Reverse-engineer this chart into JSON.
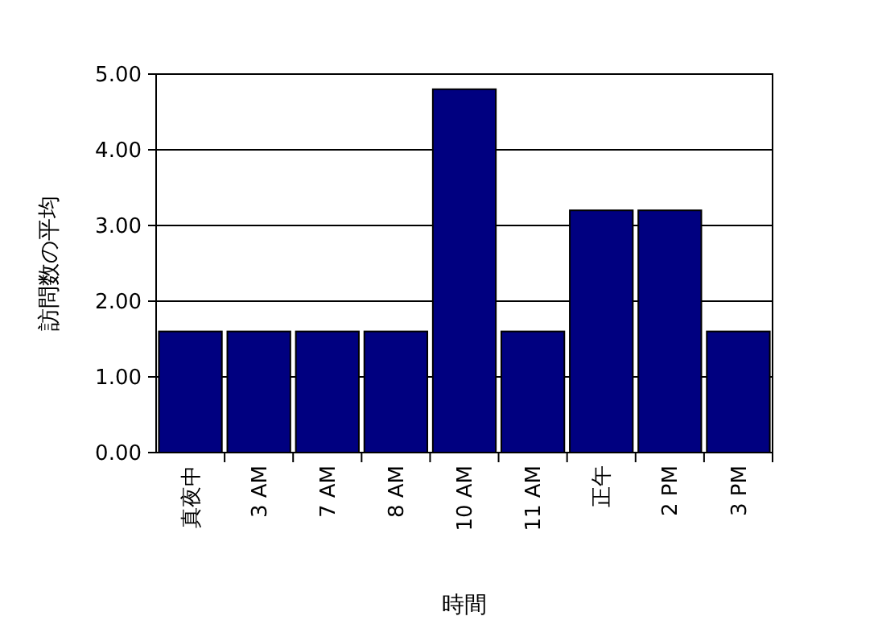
{
  "chart_data": {
    "type": "bar",
    "xlabel": "時間",
    "ylabel": "訪問数の平均",
    "categories": [
      "真夜中",
      "3 AM",
      "7 AM",
      "8 AM",
      "10 AM",
      "11 AM",
      "正午",
      "2 PM",
      "3 PM"
    ],
    "values": [
      1.6,
      1.6,
      1.6,
      1.6,
      4.8,
      1.6,
      3.2,
      3.2,
      1.6
    ],
    "color": "#000080",
    "ylim": [
      0,
      5
    ],
    "yticks": [
      {
        "value": 0,
        "label": "0.00"
      },
      {
        "value": 1,
        "label": "1.00"
      },
      {
        "value": 2,
        "label": "2.00"
      },
      {
        "value": 3,
        "label": "3.00"
      },
      {
        "value": 4,
        "label": "4.00"
      },
      {
        "value": 5,
        "label": "5.00"
      }
    ],
    "grid": "y"
  }
}
